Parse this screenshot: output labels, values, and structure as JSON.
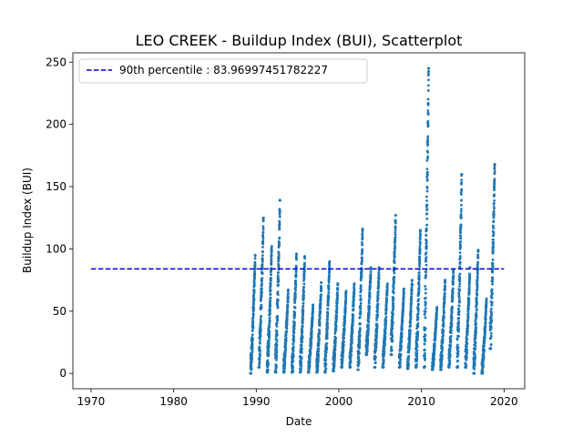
{
  "chart_data": {
    "type": "scatter",
    "title": "LEO CREEK - Buildup Index (BUI), Scatterplot",
    "xlabel": "Date",
    "ylabel": "Buildup Index (BUI)",
    "x_axis_kind": "year",
    "xlim": [
      1967.8,
      2022.5
    ],
    "ylim": [
      -12.3,
      257.5
    ],
    "x_ticks": [
      "1970",
      "1980",
      "1990",
      "2000",
      "2010",
      "2020"
    ],
    "y_ticks": [
      "0",
      "50",
      "100",
      "150",
      "200",
      "250"
    ],
    "grid": false,
    "legend_position": "upper left",
    "reference_line": {
      "label": "90th percentile : 83.96997451782227",
      "y": 83.96997451782227,
      "x_range": [
        1970,
        2020
      ],
      "style": "dashed",
      "color": "#0000cc"
    },
    "series": [
      {
        "color": "#1f77b4",
        "seasons": [
          {
            "year": 1989,
            "peak": 95,
            "low": 0
          },
          {
            "year": 1990,
            "peak": 125,
            "low": 5
          },
          {
            "year": 1991,
            "peak": 102,
            "low": 1
          },
          {
            "year": 1992,
            "peak": 139,
            "low": 1
          },
          {
            "year": 1993,
            "peak": 67,
            "low": 1
          },
          {
            "year": 1994,
            "peak": 96,
            "low": 1
          },
          {
            "year": 1995,
            "peak": 94,
            "low": 1
          },
          {
            "year": 1996,
            "peak": 55,
            "low": 1
          },
          {
            "year": 1997,
            "peak": 73,
            "low": 1
          },
          {
            "year": 1998,
            "peak": 90,
            "low": 1
          },
          {
            "year": 1999,
            "peak": 72,
            "low": 2
          },
          {
            "year": 2000,
            "peak": 66,
            "low": 5
          },
          {
            "year": 2001,
            "peak": 72,
            "low": 5
          },
          {
            "year": 2002,
            "peak": 116,
            "low": 3
          },
          {
            "year": 2003,
            "peak": 85,
            "low": 15
          },
          {
            "year": 2004,
            "peak": 85,
            "low": 5
          },
          {
            "year": 2005,
            "peak": 72,
            "low": 5
          },
          {
            "year": 2006,
            "peak": 127,
            "low": 15
          },
          {
            "year": 2007,
            "peak": 68,
            "low": 5
          },
          {
            "year": 2008,
            "peak": 75,
            "low": 4
          },
          {
            "year": 2009,
            "peak": 115,
            "low": 5
          },
          {
            "year": 2010,
            "peak": 245,
            "low": 5
          },
          {
            "year": 2011,
            "peak": 53,
            "low": 3
          },
          {
            "year": 2012,
            "peak": 75,
            "low": 3
          },
          {
            "year": 2013,
            "peak": 83,
            "low": 5
          },
          {
            "year": 2014,
            "peak": 160,
            "low": 5
          },
          {
            "year": 2015,
            "peak": 85,
            "low": 5
          },
          {
            "year": 2016,
            "peak": 99,
            "low": 0
          },
          {
            "year": 2017,
            "peak": 60,
            "low": 0
          },
          {
            "year": 2018,
            "peak": 168,
            "low": 20
          }
        ]
      }
    ]
  }
}
